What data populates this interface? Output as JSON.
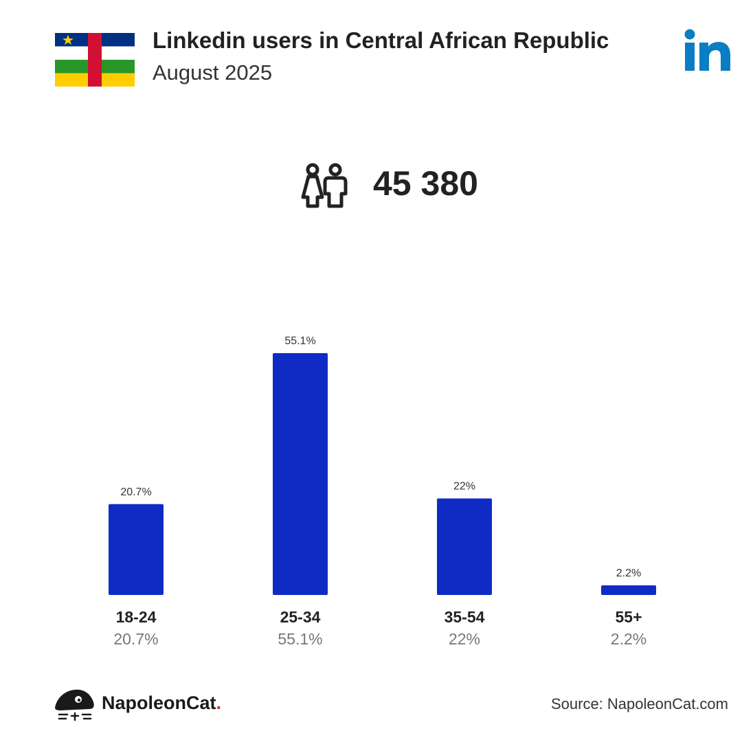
{
  "header": {
    "title": "Linkedin users in Central African Republic",
    "subtitle": "August 2025"
  },
  "summary": {
    "total_users": "45 380",
    "icon": "users-icon"
  },
  "colors": {
    "bar": "#0f2bc4",
    "linkedin": "#0a7ec2",
    "flag_blue": "#003082",
    "flag_white": "#ffffff",
    "flag_green": "#289728",
    "flag_yellow": "#ffce00",
    "flag_red": "#d21034"
  },
  "chart_data": {
    "type": "bar",
    "categories": [
      "18-24",
      "25-34",
      "35-54",
      "55+"
    ],
    "values": [
      20.7,
      55.1,
      22,
      2.2
    ],
    "value_labels": [
      "20.7%",
      "55.1%",
      "22%",
      "2.2%"
    ],
    "title": "",
    "xlabel": "",
    "ylabel": "",
    "ylim": [
      0,
      55.1
    ],
    "grid": false
  },
  "footer": {
    "brand_name": "NapoleonCat",
    "brand_dot": ".",
    "source": "Source: NapoleonCat.com"
  }
}
